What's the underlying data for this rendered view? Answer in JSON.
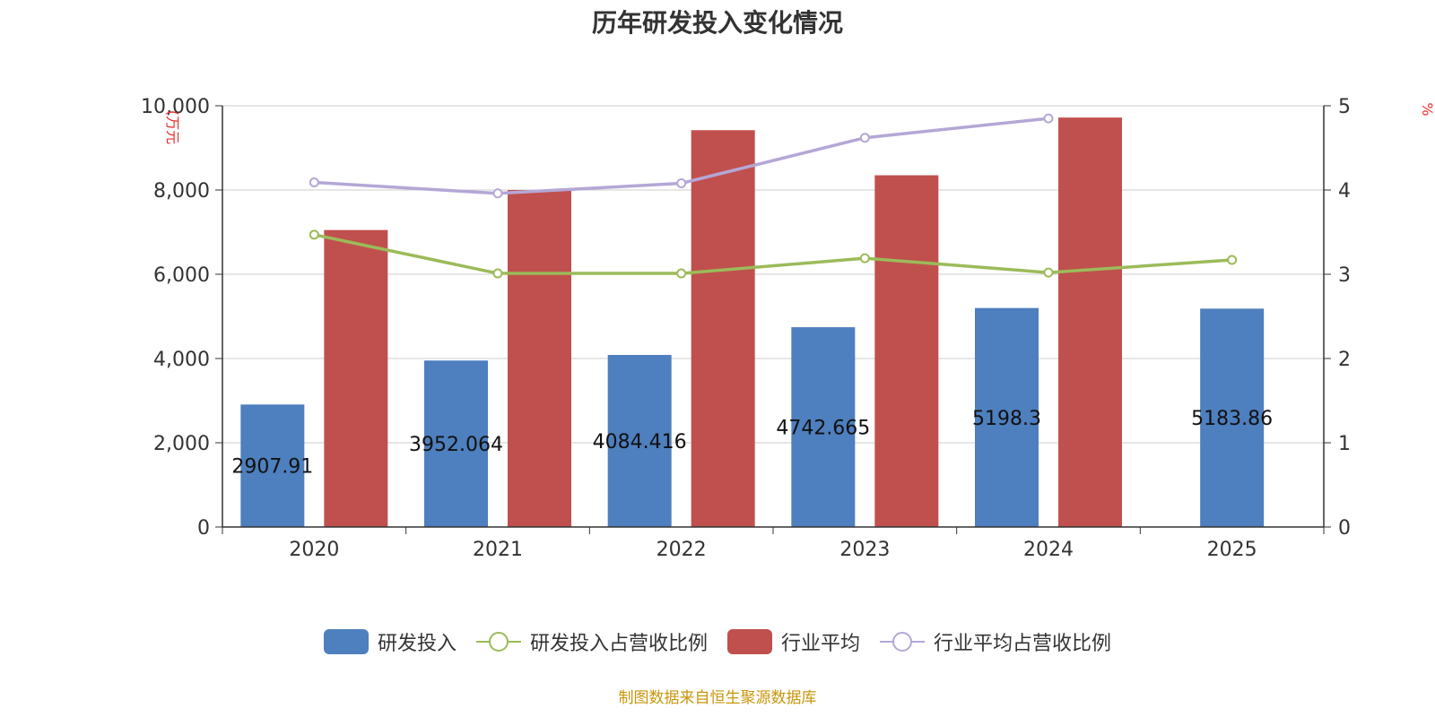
{
  "chart_data": {
    "type": "bar",
    "title": "历年研发投入变化情况",
    "categories": [
      "2020",
      "2021",
      "2022",
      "2023",
      "2024",
      "2025"
    ],
    "ylabel_left": "(万元",
    "ylabel_right": "%",
    "ylim_left": [
      0,
      10000
    ],
    "ylim_right": [
      0,
      5
    ],
    "yticks_left": [
      "0",
      "2,000",
      "4,000",
      "6,000",
      "8,000",
      "10,000"
    ],
    "yticks_right": [
      "0",
      "1",
      "2",
      "3",
      "4",
      "5"
    ],
    "grid": true,
    "legend_position": "bottom",
    "series": [
      {
        "name": "研发投入",
        "type": "bar",
        "axis": "left",
        "color": "#4e7fbe",
        "values": [
          2907.91,
          3952.064,
          4084.416,
          4742.665,
          5198.3,
          5183.86
        ],
        "labels": [
          "2907.91",
          "3952.064",
          "4084.416",
          "4742.665",
          "5198.3",
          "5183.86"
        ]
      },
      {
        "name": "研发投入占营收比例",
        "type": "line",
        "axis": "right",
        "color": "#9bbb59",
        "values": [
          3.47,
          3.01,
          3.01,
          3.19,
          3.02,
          3.17
        ]
      },
      {
        "name": "行业平均",
        "type": "bar",
        "axis": "left",
        "color": "#c0504d",
        "values": [
          7050,
          8000,
          9420,
          8350,
          9720,
          null
        ]
      },
      {
        "name": "行业平均占营收比例",
        "type": "line",
        "axis": "right",
        "color": "#b4a7d6",
        "values": [
          4.09,
          3.96,
          4.08,
          4.62,
          4.85,
          null
        ]
      }
    ]
  },
  "source_note": "制图数据来自恒生聚源数据库"
}
